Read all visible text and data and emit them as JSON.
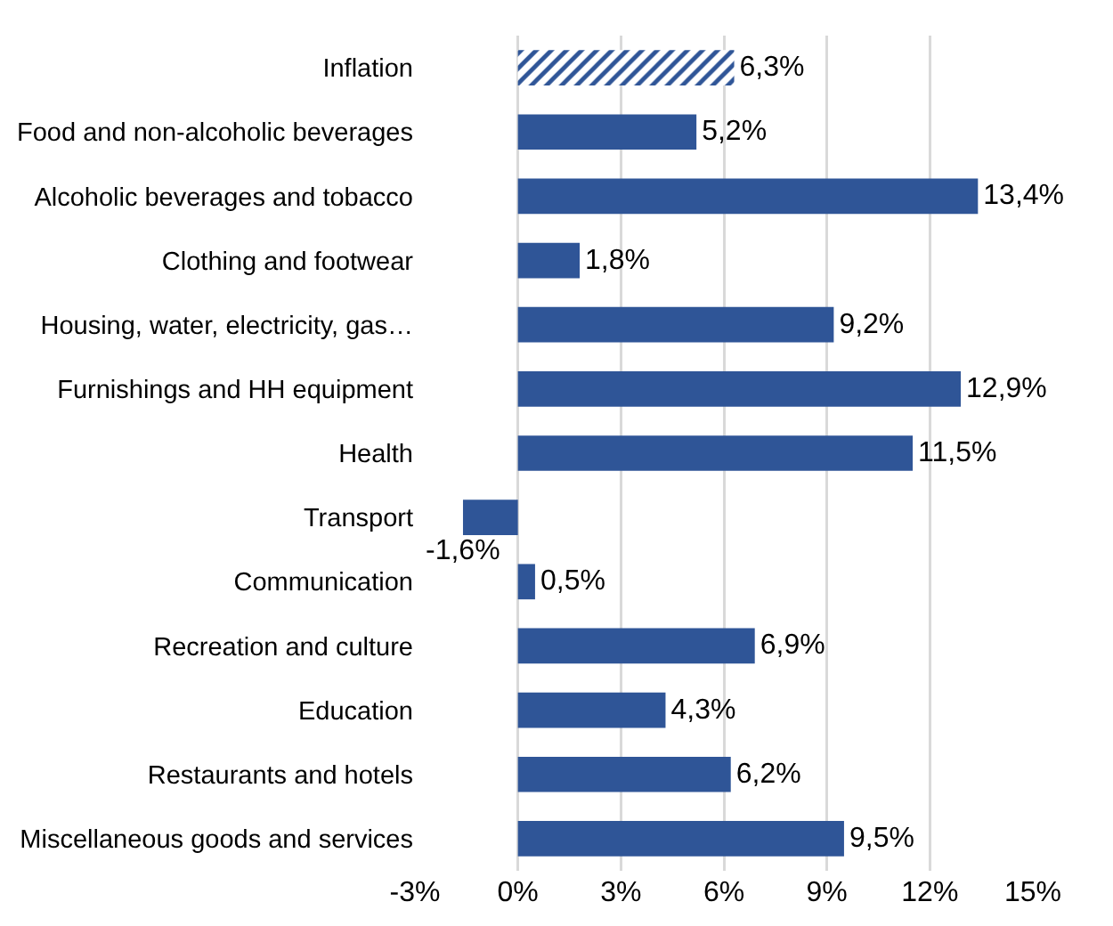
{
  "chart_data": {
    "type": "bar",
    "orientation": "horizontal",
    "categories": [
      "Inflation",
      "Food and non-alcoholic beverages",
      "Alcoholic beverages and tobacco",
      "Clothing and footwear",
      "Housing, water, electricity, gas…",
      "Furnishings and HH equipment",
      "Health",
      "Transport",
      "Communication",
      "Recreation and culture",
      "Education",
      "Restaurants and hotels",
      "Miscellaneous goods and services"
    ],
    "series": [
      {
        "color": "#2f5597",
        "values": [
          6.3,
          null,
          null,
          null,
          null,
          null,
          null,
          null,
          null,
          null,
          null,
          null,
          null
        ],
        "value_labels": [
          "6,3%",
          null,
          null,
          null,
          null,
          null,
          null,
          null,
          null,
          null,
          null,
          null,
          null
        ]
      },
      {
        "color": "#2f5597",
        "values": [
          null,
          5.2,
          13.4,
          1.8,
          9.2,
          12.9,
          11.5,
          -1.6,
          0.5,
          6.9,
          4.3,
          6.2,
          9.5
        ],
        "value_labels": [
          null,
          "5,2%",
          "13,4%",
          "1,8%",
          "9,2%",
          "12,9%",
          "11,5%",
          "-1,6%",
          "0,5%",
          "6,9%",
          "4,3%",
          "6,2%",
          "9,5%"
        ]
      }
    ],
    "xlim": [
      -3,
      15
    ],
    "xticks": [
      {
        "value": -3,
        "label": "-3%"
      },
      {
        "value": 0,
        "label": "0%"
      },
      {
        "value": 3,
        "label": "3%"
      },
      {
        "value": 6,
        "label": "6%"
      },
      {
        "value": 9,
        "label": "9%"
      },
      {
        "value": 12,
        "label": "12%"
      },
      {
        "value": 15,
        "label": "15%"
      }
    ],
    "grid": "x"
  }
}
